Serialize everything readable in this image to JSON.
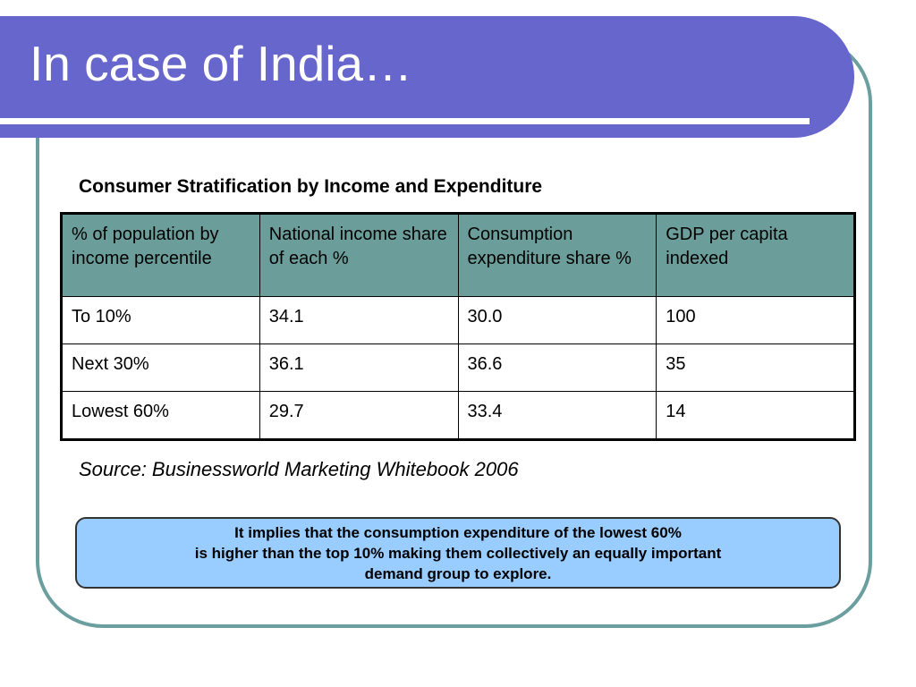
{
  "slide": {
    "title": "In case of India…",
    "table_caption": "Consumer Stratification by Income and Expenditure",
    "source": "Source: Businessworld Marketing Whitebook 2006"
  },
  "table": {
    "headers": [
      "% of population by income percentile",
      "National income share of each %",
      "Consumption expenditure share %",
      "GDP per capita indexed"
    ],
    "rows": [
      [
        "To 10%",
        "34.1",
        "30.0",
        "100"
      ],
      [
        "Next 30%",
        "36.1",
        "36.6",
        "35"
      ],
      [
        "Lowest 60%",
        "29.7",
        "33.4",
        "14"
      ]
    ]
  },
  "callout": {
    "lines": [
      "It implies that the consumption expenditure of the lowest 60%",
      "is higher than the top 10% making them collectively an equally important",
      "demand group to explore."
    ]
  },
  "colors": {
    "title_band": "#6666cc",
    "frame_border": "#6b9e9e",
    "table_header": "#6b9e9a",
    "callout_fill": "#99ccff"
  }
}
